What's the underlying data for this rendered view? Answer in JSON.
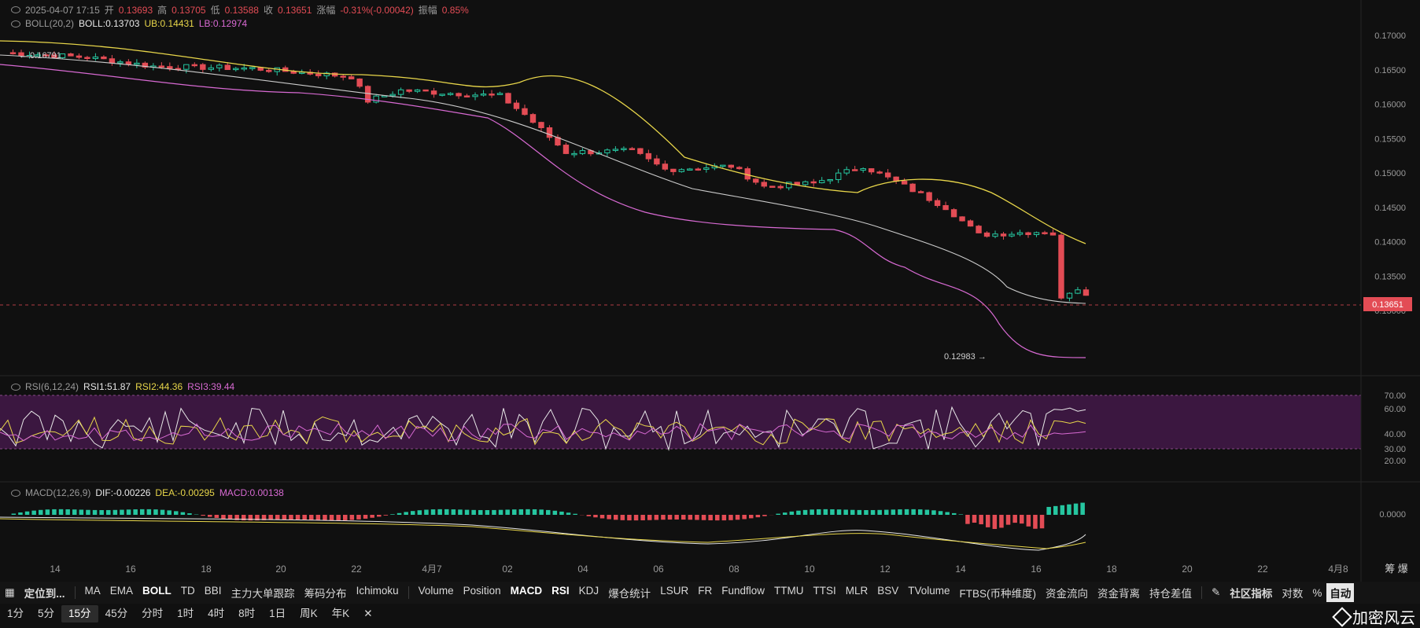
{
  "header": {
    "datetime": "2025-04-07 17:15",
    "open_label": "开",
    "open": "0.13693",
    "high_label": "高",
    "high": "0.13705",
    "low_label": "低",
    "low": "0.13588",
    "close_label": "收",
    "close": "0.13651",
    "change_label": "涨幅",
    "change": "-0.31%(-0.00042)",
    "amp_label": "振幅",
    "amp": "0.85%"
  },
  "boll": {
    "label": "BOLL(20,2)",
    "mid": "BOLL:0.13703",
    "ub": "UB:0.14431",
    "lb": "LB:0.12974"
  },
  "rsi": {
    "label": "RSI(6,12,24)",
    "rsi1": "RSI1:51.87",
    "rsi2": "RSI2:44.36",
    "rsi3": "RSI3:39.44"
  },
  "macd": {
    "label": "MACD(12,26,9)",
    "dif": "DIF:-0.00226",
    "dea": "DEA:-0.00295",
    "macd": "MACD:0.00138"
  },
  "price_axis": {
    "ticks": [
      "0.17000",
      "0.16500",
      "0.16000",
      "0.15500",
      "0.15000",
      "0.14500",
      "0.14000",
      "0.13500",
      "0.13000"
    ],
    "current": "0.13651"
  },
  "rsi_axis": {
    "ticks": [
      "70.00",
      "60.00",
      "40.00",
      "30.00",
      "20.00"
    ]
  },
  "macd_axis": {
    "ticks": [
      "0.0000"
    ]
  },
  "markers": {
    "high": "0.16791",
    "low": "0.12983"
  },
  "time_axis": {
    "labels": [
      "14",
      "16",
      "18",
      "20",
      "22",
      "4月7",
      "02",
      "04",
      "06",
      "08",
      "10",
      "12",
      "14",
      "16",
      "18",
      "20",
      "22",
      "4月8"
    ],
    "right_label": "筹 爆"
  },
  "colors": {
    "up": "#26c6a0",
    "down": "#e34c55",
    "boll_mid": "#cccccc",
    "ub": "#e8d64a",
    "lb": "#d86ad3"
  },
  "toolbar": {
    "locate": "定位到...",
    "main_indicators": [
      "MA",
      "EMA",
      "BOLL",
      "TD",
      "BBI",
      "主力大单跟踪",
      "筹码分布",
      "Ichimoku"
    ],
    "sub_indicators": [
      "Volume",
      "Position",
      "MACD",
      "RSI",
      "KDJ",
      "爆仓统计",
      "LSUR",
      "FR",
      "Fundflow",
      "TTMU",
      "TTSI",
      "MLR",
      "BSV",
      "TVolume",
      "FTBS(币种维度)",
      "资金流向",
      "资金背离",
      "持仓差值"
    ],
    "community": "社区指标",
    "log": "对数",
    "percent": "%",
    "auto": "自动"
  },
  "intervals": [
    "1分",
    "5分",
    "15分",
    "45分",
    "分时",
    "1时",
    "4时",
    "8时",
    "1日",
    "周K",
    "年K"
  ],
  "active_interval": "15分",
  "brand": "加密风云"
}
